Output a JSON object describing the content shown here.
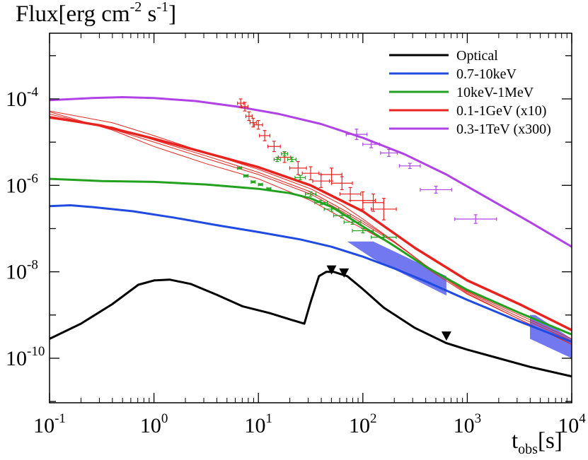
{
  "chart_data": {
    "type": "line",
    "title": {
      "main": "Flux[erg cm",
      "sup1": "-2",
      "mid": " s",
      "sup2": "-1",
      "end": "]"
    },
    "xlabel": {
      "main": "t",
      "sub": "obs",
      "end": "[s]"
    },
    "xscale": "log",
    "yscale": "log",
    "xlim_log10": [
      -1,
      4
    ],
    "ylim_log10": [
      -11.03,
      -2.48
    ],
    "x_ticks": [
      {
        "base": "10",
        "exp": "-1",
        "log": -1
      },
      {
        "base": "10",
        "exp": "0",
        "log": 0
      },
      {
        "base": "10",
        "exp": "1",
        "log": 1
      },
      {
        "base": "10",
        "exp": "2",
        "log": 2
      },
      {
        "base": "10",
        "exp": "3",
        "log": 3
      },
      {
        "base": "10",
        "exp": "4",
        "log": 4
      }
    ],
    "y_ticks": [
      {
        "base": "10",
        "exp": "-4",
        "log": -4
      },
      {
        "base": "10",
        "exp": "-6",
        "log": -6
      },
      {
        "base": "10",
        "exp": "-8",
        "log": -8
      },
      {
        "base": "10",
        "exp": "-10",
        "log": -10
      }
    ],
    "legend_position": "top-right",
    "series": [
      {
        "name": "Optical",
        "color": "#000000",
        "width": 3,
        "points": [
          [
            -1,
            -9.55
          ],
          [
            -0.7,
            -9.2
          ],
          [
            -0.4,
            -8.75
          ],
          [
            -0.15,
            -8.3
          ],
          [
            0,
            -8.2
          ],
          [
            0.15,
            -8.18
          ],
          [
            0.35,
            -8.28
          ],
          [
            0.6,
            -8.53
          ],
          [
            0.85,
            -8.8
          ],
          [
            1.1,
            -8.95
          ],
          [
            1.3,
            -9.1
          ],
          [
            1.44,
            -9.2
          ],
          [
            1.5,
            -8.7
          ],
          [
            1.58,
            -8.1
          ],
          [
            1.65,
            -8.0
          ],
          [
            1.72,
            -8.0
          ],
          [
            1.85,
            -8.1
          ],
          [
            2.0,
            -8.4
          ],
          [
            2.2,
            -8.83
          ],
          [
            2.5,
            -9.3
          ],
          [
            2.8,
            -9.65
          ],
          [
            3.0,
            -9.8
          ],
          [
            3.3,
            -10.0
          ],
          [
            3.6,
            -10.2
          ],
          [
            4,
            -10.42
          ]
        ]
      },
      {
        "name": "0.7-10keV",
        "color": "#1f4be0",
        "width": 3,
        "points": [
          [
            -1,
            -6.48
          ],
          [
            -0.8,
            -6.46
          ],
          [
            -0.6,
            -6.5
          ],
          [
            -0.2,
            -6.6
          ],
          [
            0.2,
            -6.75
          ],
          [
            0.6,
            -6.92
          ],
          [
            1.0,
            -7.08
          ],
          [
            1.4,
            -7.25
          ],
          [
            1.7,
            -7.42
          ],
          [
            2.0,
            -7.65
          ],
          [
            2.3,
            -7.92
          ],
          [
            2.6,
            -8.22
          ],
          [
            3.0,
            -8.65
          ],
          [
            3.5,
            -9.15
          ],
          [
            4,
            -9.62
          ]
        ]
      },
      {
        "name": "10keV-1MeV",
        "color": "#21a11d",
        "width": 3,
        "points": [
          [
            -1,
            -5.85
          ],
          [
            -0.5,
            -5.9
          ],
          [
            0,
            -5.92
          ],
          [
            0.5,
            -5.98
          ],
          [
            1.0,
            -6.08
          ],
          [
            1.3,
            -6.18
          ],
          [
            1.5,
            -6.3
          ],
          [
            1.7,
            -6.5
          ],
          [
            1.85,
            -6.72
          ],
          [
            2.0,
            -6.95
          ],
          [
            2.3,
            -7.4
          ],
          [
            2.6,
            -7.88
          ],
          [
            3.0,
            -8.42
          ],
          [
            3.5,
            -8.95
          ],
          [
            4,
            -9.45
          ]
        ]
      },
      {
        "name": "0.1-1GeV (x10)",
        "color": "#e8231f",
        "width": 3.5,
        "points": [
          [
            -1,
            -4.42
          ],
          [
            -0.5,
            -4.62
          ],
          [
            0,
            -4.92
          ],
          [
            0.5,
            -5.25
          ],
          [
            1.0,
            -5.58
          ],
          [
            1.5,
            -6.0
          ],
          [
            2.0,
            -6.6
          ],
          [
            2.5,
            -7.45
          ],
          [
            3.0,
            -8.2
          ],
          [
            3.5,
            -8.75
          ],
          [
            4,
            -9.35
          ]
        ]
      },
      {
        "name": "0.3-1TeV (x300)",
        "color": "#b142e6",
        "width": 3,
        "points": [
          [
            -1,
            -4.03
          ],
          [
            -0.6,
            -3.98
          ],
          [
            -0.3,
            -3.96
          ],
          [
            0,
            -3.98
          ],
          [
            0.4,
            -4.05
          ],
          [
            0.8,
            -4.18
          ],
          [
            1.2,
            -4.35
          ],
          [
            1.6,
            -4.58
          ],
          [
            2.0,
            -4.9
          ],
          [
            2.4,
            -5.28
          ],
          [
            2.8,
            -5.75
          ],
          [
            3.2,
            -6.3
          ],
          [
            3.6,
            -6.85
          ],
          [
            4,
            -7.42
          ]
        ]
      }
    ],
    "model_lines_thin": {
      "color": "#e8231f",
      "width": 1,
      "lines": [
        [
          [
            -1,
            -4.28
          ],
          [
            -0.4,
            -4.55
          ],
          [
            0,
            -4.85
          ],
          [
            0.5,
            -5.25
          ],
          [
            1.0,
            -5.63
          ],
          [
            1.5,
            -6.08
          ],
          [
            1.8,
            -6.45
          ],
          [
            2.0,
            -6.78
          ],
          [
            2.3,
            -7.3
          ],
          [
            2.6,
            -7.85
          ],
          [
            3.0,
            -8.45
          ],
          [
            3.5,
            -9.0
          ],
          [
            4,
            -9.55
          ]
        ],
        [
          [
            -1,
            -4.35
          ],
          [
            -0.4,
            -4.7
          ],
          [
            0,
            -5.0
          ],
          [
            0.5,
            -5.38
          ],
          [
            1.0,
            -5.75
          ],
          [
            1.5,
            -6.2
          ],
          [
            1.8,
            -6.6
          ],
          [
            2.0,
            -6.88
          ],
          [
            2.3,
            -7.32
          ],
          [
            2.6,
            -7.85
          ],
          [
            3.0,
            -8.47
          ],
          [
            3.5,
            -9.05
          ],
          [
            4,
            -9.6
          ]
        ],
        [
          [
            -1,
            -4.45
          ],
          [
            -0.4,
            -4.65
          ],
          [
            0,
            -4.95
          ],
          [
            0.5,
            -5.32
          ],
          [
            1.0,
            -5.7
          ],
          [
            1.5,
            -6.15
          ],
          [
            1.8,
            -6.55
          ],
          [
            2.0,
            -6.83
          ],
          [
            2.3,
            -7.3
          ],
          [
            2.6,
            -7.85
          ],
          [
            3.0,
            -8.5
          ],
          [
            3.5,
            -9.1
          ],
          [
            4,
            -9.68
          ]
        ],
        [
          [
            -1,
            -4.3
          ],
          [
            -0.4,
            -4.72
          ],
          [
            0,
            -5.1
          ],
          [
            0.5,
            -5.5
          ],
          [
            1.0,
            -5.85
          ],
          [
            1.5,
            -6.35
          ],
          [
            1.8,
            -6.75
          ],
          [
            2.0,
            -7.0
          ],
          [
            2.3,
            -7.4
          ],
          [
            2.6,
            -7.9
          ],
          [
            3.0,
            -8.52
          ],
          [
            3.5,
            -9.1
          ],
          [
            4,
            -9.68
          ]
        ]
      ]
    },
    "error_data": [
      {
        "series": "0.1-1GeV (x10)",
        "color": "#e8231f",
        "points": [
          [
            0.83,
            -4.1,
            0.03,
            0.1
          ],
          [
            0.87,
            -4.18,
            0.03,
            0.1
          ],
          [
            0.91,
            -4.4,
            0.03,
            0.1
          ],
          [
            0.95,
            -4.55,
            0.03,
            0.1
          ],
          [
            1.0,
            -4.6,
            0.04,
            0.1
          ],
          [
            1.06,
            -4.85,
            0.05,
            0.12
          ],
          [
            1.15,
            -5.1,
            0.06,
            0.12
          ],
          [
            1.25,
            -5.35,
            0.06,
            0.12
          ],
          [
            1.38,
            -5.6,
            0.08,
            0.15
          ],
          [
            1.5,
            -5.72,
            0.08,
            0.15
          ],
          [
            1.6,
            -5.9,
            0.08,
            0.15
          ],
          [
            1.7,
            -5.75,
            0.1,
            0.15
          ],
          [
            1.8,
            -5.95,
            0.1,
            0.15
          ],
          [
            1.88,
            -6.2,
            0.1,
            0.15
          ],
          [
            2.0,
            -6.35,
            0.12,
            0.2
          ],
          [
            2.1,
            -6.4,
            0.1,
            0.2
          ],
          [
            2.2,
            -6.55,
            0.12,
            0.25
          ]
        ]
      },
      {
        "series": "10keV-1MeV",
        "color": "#21a11d",
        "points": [
          [
            0.82,
            -5.6,
            0.02,
            0.02
          ],
          [
            0.88,
            -5.78,
            0.02,
            0.02
          ],
          [
            0.95,
            -5.92,
            0.02,
            0.02
          ],
          [
            1.02,
            -5.98,
            0.02,
            0.02
          ],
          [
            1.1,
            -6.08,
            0.02,
            0.02
          ],
          [
            1.18,
            -5.4,
            0.03,
            0.05
          ],
          [
            1.25,
            -5.27,
            0.03,
            0.05
          ],
          [
            1.32,
            -5.4,
            0.04,
            0.05
          ],
          [
            1.4,
            -5.82,
            0.05,
            0.05
          ],
          [
            1.5,
            -6.2,
            0.05,
            0.05
          ],
          [
            1.6,
            -6.4,
            0.06,
            0.05
          ],
          [
            1.7,
            -6.55,
            0.07,
            0.05
          ],
          [
            1.8,
            -6.7,
            0.08,
            0.05
          ],
          [
            1.9,
            -6.85,
            0.08,
            0.05
          ],
          [
            2.0,
            -7.05,
            0.1,
            0.05
          ],
          [
            2.2,
            -7.2,
            0.12,
            0.05
          ]
        ]
      },
      {
        "series": "0.3-1TeV (x300)",
        "color": "#b142e6",
        "points": [
          [
            1.94,
            -4.82,
            0.1,
            0.12
          ],
          [
            2.08,
            -5.05,
            0.08,
            0.08
          ],
          [
            2.25,
            -5.25,
            0.08,
            0.08
          ],
          [
            2.45,
            -5.55,
            0.1,
            0.06
          ],
          [
            2.7,
            -6.1,
            0.15,
            0.08
          ],
          [
            3.08,
            -6.78,
            0.2,
            0.1
          ]
        ]
      }
    ],
    "shaded_regions": [
      {
        "series": "0.7-10keV",
        "color": "#7278f0",
        "polygons": [
          [
            [
              1.85,
              -7.3
            ],
            [
              2.1,
              -7.3
            ],
            [
              2.8,
              -8.1
            ],
            [
              2.8,
              -8.55
            ],
            [
              2.1,
              -7.7
            ]
          ],
          [
            [
              3.6,
              -9.0
            ],
            [
              3.65,
              -9.0
            ],
            [
              4,
              -9.55
            ],
            [
              4,
              -10.0
            ],
            [
              3.6,
              -9.55
            ]
          ]
        ]
      }
    ],
    "markers": [
      {
        "series": "Optical",
        "shape": "triangle-down",
        "points": [
          [
            1.7,
            -7.95
          ],
          [
            1.82,
            -8.02
          ],
          [
            2.8,
            -9.48
          ]
        ]
      }
    ]
  }
}
